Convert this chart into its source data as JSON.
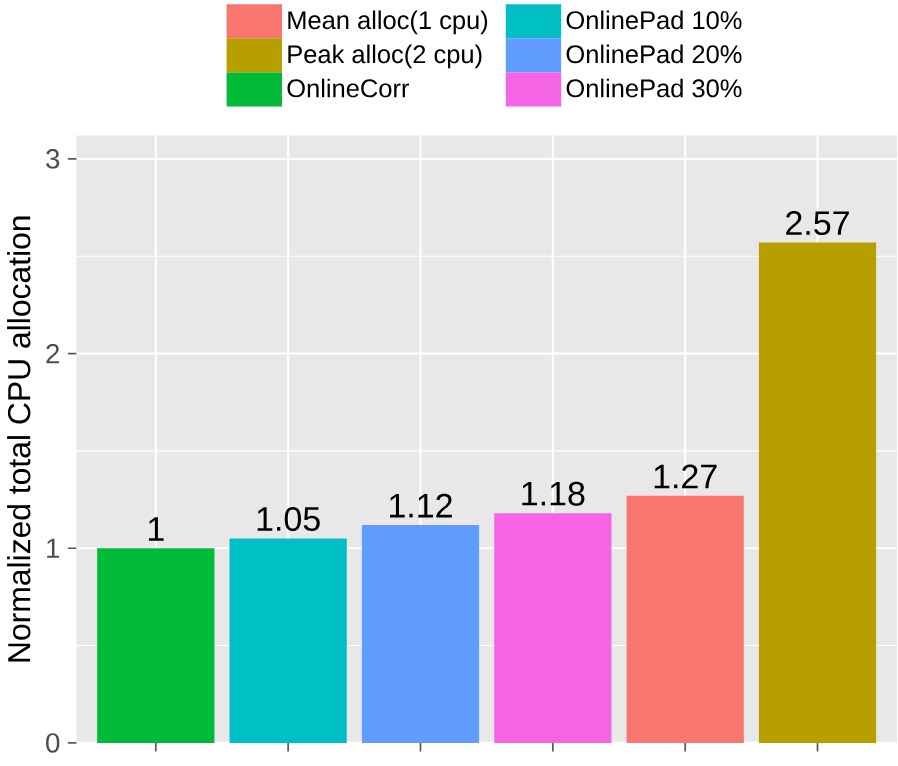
{
  "chart_data": {
    "type": "bar",
    "ylabel": "Normalized total CPU allocation",
    "categories": [
      null,
      null,
      null,
      null,
      null,
      null
    ],
    "series": [
      {
        "name": "Mean alloc(1 cpu)",
        "color": "#f8766d",
        "values": [
          null,
          null,
          null,
          null,
          1.27,
          null
        ]
      },
      {
        "name": "Peak alloc(2 cpu)",
        "color": "#b79f00",
        "values": [
          null,
          null,
          null,
          null,
          null,
          2.57
        ]
      },
      {
        "name": "OnlineCorr",
        "color": "#00ba38",
        "values": [
          1,
          null,
          null,
          null,
          null,
          null
        ]
      },
      {
        "name": "OnlinePad 10%",
        "color": "#00bfc4",
        "values": [
          null,
          1.05,
          null,
          null,
          null,
          null
        ]
      },
      {
        "name": "OnlinePad 20%",
        "color": "#619cff",
        "values": [
          null,
          null,
          1.12,
          null,
          null,
          null
        ]
      },
      {
        "name": "OnlinePad 30%",
        "color": "#f564e3",
        "values": [
          null,
          null,
          null,
          1.18,
          null,
          null
        ]
      }
    ],
    "ylim": [
      0,
      3.12
    ],
    "yticks": [
      0,
      1,
      2,
      3
    ],
    "grid": true,
    "legend": "top",
    "data_labels": true,
    "tick_labels": "y"
  }
}
